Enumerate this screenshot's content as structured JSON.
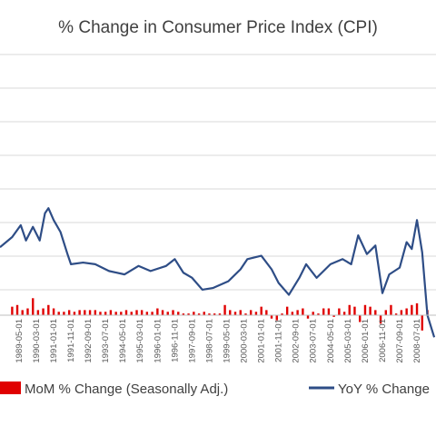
{
  "chart_data": {
    "type": "bar+line",
    "title": "% Change in Consumer Price Index (CPI)",
    "xlabel": "",
    "ylabel": "",
    "ylim": [
      -1,
      6.5
    ],
    "grid": true,
    "legend_position": "bottom",
    "x_tick_labels": [
      "1989-05-01",
      "1990-03-01",
      "1991-01-01",
      "1991-11-01",
      "1992-09-01",
      "1993-07-01",
      "1994-05-01",
      "1995-03-01",
      "1996-01-01",
      "1996-11-01",
      "1997-09-01",
      "1998-07-01",
      "1999-05-01",
      "2000-03-01",
      "2001-01-01",
      "2001-11-01",
      "2002-09-01",
      "2003-07-01",
      "2004-05-01",
      "2005-03-01",
      "2006-01-01",
      "2006-11-01",
      "2007-09-01",
      "2008-07-01"
    ],
    "series": [
      {
        "name": "MoM % Change (Seasonally Adj.)",
        "type": "bar",
        "color": "#e00000",
        "x": [
          "1989-01-01",
          "1989-04-01",
          "1989-07-01",
          "1989-10-01",
          "1990-01-01",
          "1990-04-01",
          "1990-07-01",
          "1990-10-01",
          "1991-01-01",
          "1991-04-01",
          "1991-07-01",
          "1991-10-01",
          "1992-01-01",
          "1992-04-01",
          "1992-07-01",
          "1992-10-01",
          "1993-01-01",
          "1993-04-01",
          "1993-07-01",
          "1993-10-01",
          "1994-01-01",
          "1994-04-01",
          "1994-07-01",
          "1994-10-01",
          "1995-01-01",
          "1995-04-01",
          "1995-07-01",
          "1995-10-01",
          "1996-01-01",
          "1996-04-01",
          "1996-07-01",
          "1996-10-01",
          "1997-01-01",
          "1997-04-01",
          "1997-07-01",
          "1997-10-01",
          "1998-01-01",
          "1998-04-01",
          "1998-07-01",
          "1998-10-01",
          "1999-01-01",
          "1999-04-01",
          "1999-07-01",
          "1999-10-01",
          "2000-01-01",
          "2000-04-01",
          "2000-07-01",
          "2000-10-01",
          "2001-01-01",
          "2001-04-01",
          "2001-07-01",
          "2001-10-01",
          "2002-01-01",
          "2002-04-01",
          "2002-07-01",
          "2002-10-01",
          "2003-01-01",
          "2003-04-01",
          "2003-07-01",
          "2003-10-01",
          "2004-01-01",
          "2004-04-01",
          "2004-07-01",
          "2004-10-01",
          "2005-01-01",
          "2005-04-01",
          "2005-07-01",
          "2005-10-01",
          "2006-01-01",
          "2006-04-01",
          "2006-07-01",
          "2006-10-01",
          "2007-01-01",
          "2007-04-01",
          "2007-07-01",
          "2007-10-01",
          "2008-01-01",
          "2008-04-01",
          "2008-07-01",
          "2008-10-01",
          "2009-01-01"
        ],
        "values": [
          0.5,
          0.6,
          0.3,
          0.4,
          1.0,
          0.3,
          0.4,
          0.6,
          0.4,
          0.2,
          0.2,
          0.3,
          0.2,
          0.3,
          0.3,
          0.3,
          0.3,
          0.2,
          0.2,
          0.3,
          0.2,
          0.2,
          0.3,
          0.2,
          0.3,
          0.3,
          0.2,
          0.2,
          0.4,
          0.3,
          0.2,
          0.3,
          0.2,
          0.1,
          0.1,
          0.2,
          0.1,
          0.2,
          0.1,
          0.1,
          0.1,
          0.6,
          0.3,
          0.2,
          0.3,
          0.1,
          0.3,
          0.2,
          0.5,
          0.3,
          -0.2,
          -0.3,
          0.1,
          0.5,
          0.2,
          0.3,
          0.4,
          -0.2,
          0.2,
          0.1,
          0.4,
          0.4,
          -0.1,
          0.4,
          0.2,
          0.6,
          0.5,
          -0.4,
          0.6,
          0.5,
          0.3,
          -0.5,
          0.3,
          0.6,
          0.1,
          0.3,
          0.4,
          0.6,
          0.7,
          -0.9,
          0.3
        ]
      },
      {
        "name": "YoY % Change",
        "type": "line",
        "color": "#2e4d86",
        "x": [
          "1988-06-01",
          "1989-01-01",
          "1989-06-01",
          "1989-09-01",
          "1990-01-01",
          "1990-05-01",
          "1990-08-01",
          "1990-10-01",
          "1991-01-01",
          "1991-05-01",
          "1991-09-01",
          "1991-11-01",
          "1992-06-01",
          "1993-01-01",
          "1993-09-01",
          "1994-06-01",
          "1995-02-01",
          "1995-09-01",
          "1996-06-01",
          "1996-11-01",
          "1997-04-01",
          "1997-09-01",
          "1998-03-01",
          "1998-09-01",
          "1999-06-01",
          "2000-01-01",
          "2000-05-01",
          "2001-01-01",
          "2001-07-01",
          "2001-11-01",
          "2002-05-01",
          "2002-11-01",
          "2003-03-01",
          "2003-09-01",
          "2004-05-01",
          "2004-12-01",
          "2005-05-01",
          "2005-09-01",
          "2006-02-01",
          "2006-07-01",
          "2006-11-01",
          "2007-03-01",
          "2007-09-01",
          "2008-01-01",
          "2008-04-01",
          "2008-07-01",
          "2008-10-01",
          "2009-01-01",
          "2009-05-01"
        ],
        "values": [
          4.0,
          4.6,
          5.3,
          4.4,
          5.2,
          4.4,
          6.0,
          6.3,
          5.6,
          4.9,
          3.6,
          3.0,
          3.1,
          3.0,
          2.6,
          2.4,
          2.9,
          2.6,
          2.9,
          3.3,
          2.5,
          2.2,
          1.5,
          1.6,
          2.0,
          2.7,
          3.3,
          3.5,
          2.7,
          1.9,
          1.2,
          2.2,
          3.0,
          2.2,
          3.0,
          3.3,
          3.0,
          4.7,
          3.6,
          4.1,
          1.3,
          2.4,
          2.8,
          4.3,
          3.9,
          5.6,
          3.7,
          0.0,
          -1.3
        ]
      }
    ]
  }
}
